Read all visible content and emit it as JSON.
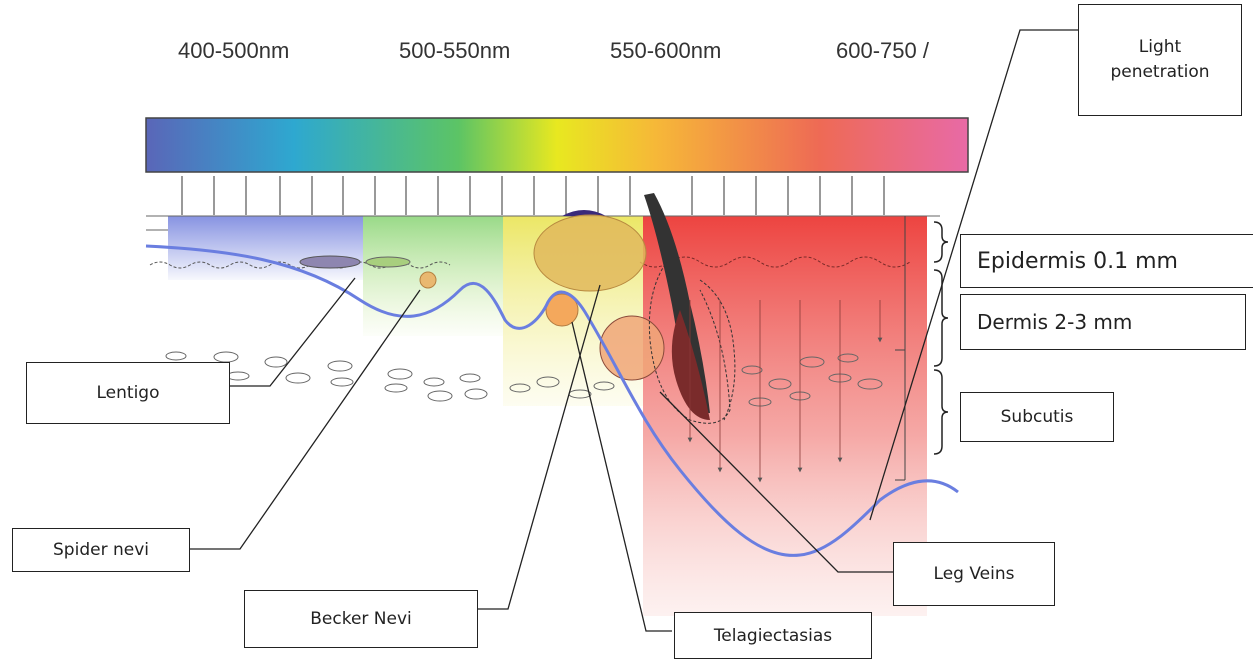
{
  "wavelengths": [
    "400-500nm",
    "500-550nm",
    "550-600nm",
    "600-750 /"
  ],
  "labels": {
    "light_penetration": "Light penetration",
    "epidermis": "Epidermis 0.1 mm",
    "dermis": "Dermis 2-3 mm",
    "subcutis": "Subcutis",
    "lentigo": "Lentigo",
    "spider_nevi": "Spider nevi",
    "becker_nevi": "Becker Nevi",
    "telangiectasias": "Telagiectasias",
    "leg_veins": "Leg Veins"
  },
  "colors": {
    "spectrum": [
      "#5a66b8",
      "#2ea8d0",
      "#5cc465",
      "#e8e820",
      "#f6b838",
      "#ee6a55",
      "#e86aa6"
    ],
    "blue_band": "#6a7ad6",
    "green_band": "#8fd27a",
    "yellow_band": "#ecea7a",
    "red_band": "#ec5a52",
    "penetration_curve": "#6a7ee0"
  }
}
